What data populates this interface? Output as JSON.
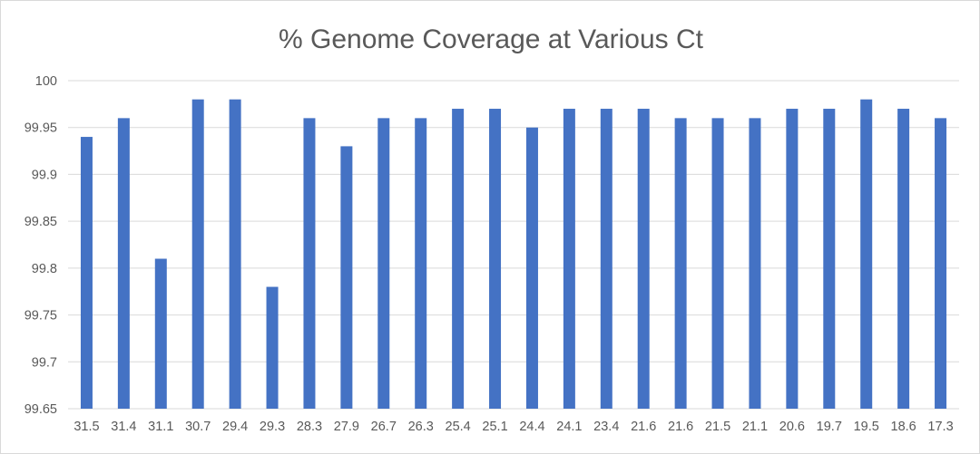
{
  "chart_data": {
    "type": "bar",
    "title": "% Genome Coverage at Various Ct",
    "xlabel": "",
    "ylabel": "",
    "categories": [
      "31.5",
      "31.4",
      "31.1",
      "30.7",
      "29.4",
      "29.3",
      "28.3",
      "27.9",
      "26.7",
      "26.3",
      "25.4",
      "25.1",
      "24.4",
      "24.1",
      "23.4",
      "21.6",
      "21.6",
      "21.5",
      "21.1",
      "20.6",
      "19.7",
      "19.5",
      "18.6",
      "17.3"
    ],
    "values": [
      99.94,
      99.96,
      99.81,
      99.98,
      99.98,
      99.78,
      99.96,
      99.93,
      99.96,
      99.96,
      99.97,
      99.97,
      99.95,
      99.97,
      99.97,
      99.97,
      99.96,
      99.96,
      99.96,
      99.97,
      99.97,
      99.98,
      99.97,
      99.96
    ],
    "ylim": [
      99.65,
      100
    ],
    "yticks": [
      "99.65",
      "99.7",
      "99.75",
      "99.8",
      "99.85",
      "99.9",
      "99.95",
      "100"
    ],
    "grid": true,
    "legend": "none",
    "colors": {
      "bar": "#4472c4",
      "grid": "#d9d9d9",
      "text": "#595959"
    }
  }
}
